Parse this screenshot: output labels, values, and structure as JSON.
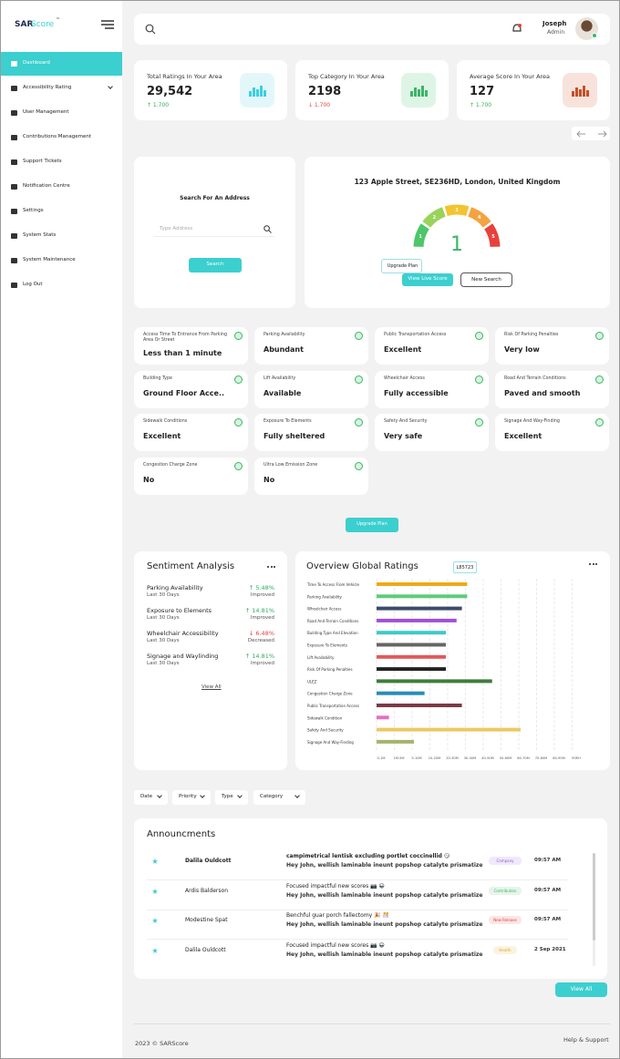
{
  "brand": {
    "prefix": "SAR",
    "suffix": "Score",
    "mark": "™"
  },
  "nav": [
    "Dashboard",
    "Accessibility Rating",
    "User Management",
    "Contributions Management",
    "Support Tickets",
    "Notification Centre",
    "Settings",
    "System Stats",
    "System Maintenance",
    "Log Out"
  ],
  "header": {
    "user_name": "Joseph",
    "user_role": "Admin"
  },
  "stats": [
    {
      "label": "Total Ratings In Your Area",
      "value": "29,542",
      "change": "↑ 1.700",
      "color": "#2fae5a",
      "icon_bg": "#e3f7fb",
      "icon_color": "#3ccfe0"
    },
    {
      "label": "Top Category In Your Area",
      "value": "2198",
      "change": "↓ 1.700",
      "color": "#e0443c",
      "icon_bg": "#def5e6",
      "icon_color": "#3bb567"
    },
    {
      "label": "Average Score In Your Area",
      "value": "127",
      "change": "↑ 1.700",
      "color": "#2fae5a",
      "icon_bg": "#f7e3dc",
      "icon_color": "#c4502a"
    }
  ],
  "search": {
    "title": "Search For An Address",
    "placeholder": "Type Address",
    "button": "Search"
  },
  "gauge": {
    "address": "123 Apple Street, SE236HD, London, United Kingdom",
    "segments": [
      "1",
      "2",
      "3",
      "4",
      "5"
    ],
    "segment_colors": [
      "#4cc76a",
      "#9ad35a",
      "#f4c430",
      "#f4a340",
      "#e8413c"
    ],
    "score": "1",
    "tooltip": "Upgrade Plan",
    "buttons": [
      "View Live Score",
      "New Search"
    ]
  },
  "features": [
    {
      "label": "Access Time To Entrance From Parking Area Or Street",
      "value": "Less than 1 minute"
    },
    {
      "label": "Parking Availability",
      "value": "Abundant"
    },
    {
      "label": "Public Transportation Access",
      "value": "Excellent"
    },
    {
      "label": "Risk Of Parking Penalties",
      "value": "Very low"
    },
    {
      "label": "Building Type",
      "value": "Ground Floor Acce.."
    },
    {
      "label": "Lift Availability",
      "value": "Available"
    },
    {
      "label": "Wheelchair Access",
      "value": "Fully accessible"
    },
    {
      "label": "Road And Terrain Conditions",
      "value": "Paved and smooth"
    },
    {
      "label": "Sidewalk Conditions",
      "value": "Excellent"
    },
    {
      "label": "Exposure To Elements",
      "value": "Fully sheltered"
    },
    {
      "label": "Safety And Security",
      "value": "Very safe"
    },
    {
      "label": "Signage And Way-Finding",
      "value": "Excellent"
    },
    {
      "label": "Congestion Charge Zone",
      "value": "No"
    },
    {
      "label": "Ultra Low Emission Zone",
      "value": "No"
    }
  ],
  "upgrade_button": "Upgrade Plan",
  "sentiment": {
    "title": "Sentiment Analysis",
    "items": [
      {
        "name": "Parking Availability",
        "period": "Last 30 Days",
        "change": "↑ 5.48%",
        "status": "Improved",
        "color": "#2fae5a"
      },
      {
        "name": "Exposure to Elements",
        "period": "Last 30 Days",
        "change": "↑ 14.81%",
        "status": "Improved",
        "color": "#2fae5a"
      },
      {
        "name": "Wheelchair Accessibility",
        "period": "Last 30 Days",
        "change": "↓ 6.48%",
        "status": "Decreased",
        "color": "#e0443c"
      },
      {
        "name": "Signage and Waylinding",
        "period": "Last 30 Days",
        "change": "↑ 14.81%",
        "status": "Improved",
        "color": "#2fae5a"
      }
    ],
    "link": "View All"
  },
  "chart_data": {
    "type": "bar",
    "orientation": "horizontal",
    "title": "Overview Global Ratings",
    "annotation": "L85723",
    "categories": [
      "Time To Access From Vehicle",
      "Parking Availability",
      "Wheelchair Access",
      "Road And Terrain Conditions",
      "Building Type And Elevation",
      "Exposure To Elements",
      "Lift Availability",
      "Risk Of Parking Penalties",
      "ULEZ",
      "Congestion Charge Zone",
      "Public Transportation Access",
      "Sidewalk Condition",
      "Safety And Security",
      "Signage And Way-Finding"
    ],
    "values": [
      5.1,
      5.1,
      4.8,
      4.5,
      3.9,
      3.9,
      3.9,
      3.9,
      6.5,
      2.7,
      4.8,
      0.7,
      8.1,
      2.1
    ],
    "colors": [
      "#f0a818",
      "#5ecb7a",
      "#3d4a6b",
      "#a24fd6",
      "#3ec9c9",
      "#666666",
      "#e05a5a",
      "#222222",
      "#3e7d3a",
      "#2a8bb8",
      "#7a3b46",
      "#e36fc4",
      "#ecc965",
      "#a3b56a"
    ],
    "xlim": [
      0,
      12
    ],
    "xticks": [
      {
        "value": 0,
        "label": "0-1M"
      },
      {
        "value": 1,
        "label": "1M-5M"
      },
      {
        "value": 2,
        "label": "5-10M"
      },
      {
        "value": 3,
        "label": "10-20M"
      },
      {
        "value": 4,
        "label": "20-30M"
      },
      {
        "value": 5,
        "label": "30-40M"
      },
      {
        "value": 6,
        "label": "40-50M"
      },
      {
        "value": 7,
        "label": "50-60M"
      },
      {
        "value": 8,
        "label": "60-70M"
      },
      {
        "value": 9,
        "label": "70-80M"
      },
      {
        "value": 10,
        "label": "80-90M"
      },
      {
        "value": 11,
        "label": "90M+"
      }
    ],
    "grid": true
  },
  "filters": [
    "Date",
    "Priority",
    "Type",
    "Category"
  ],
  "announcements": {
    "title": "Announcments",
    "rows": [
      {
        "name": "Dalila Ouldcott",
        "title": "campimetrical lentisk excluding portlet coccinellid 😏",
        "body": "Hey John, wellish laminable ineunt popshop catalyte prismatize",
        "tag": "Company",
        "tag_color": "#8a5cd6",
        "time": "09:57 AM"
      },
      {
        "name": "Ardis Balderson",
        "title": "Focused impactful new scores 📷 😀",
        "body": "Hey John, wellish laminable ineunt popshop catalyte prismatize",
        "tag": "Contribution",
        "tag_color": "#3bb567",
        "time": "09:57 AM"
      },
      {
        "name": "Modestine Spat",
        "title": "Benchful guar porch fallectomy 🎉 🎊",
        "body": "Hey John, wellish laminable ineunt popshop catalyte prismatize",
        "tag": "New Release",
        "tag_color": "#e0443c",
        "time": "09:57 AM"
      },
      {
        "name": "Dalila Ouldcott",
        "title": "Focused impactful new scores 📷 😀",
        "body": "Hey John, wellish laminable ineunt popshop catalyte prismatize",
        "tag": "Health",
        "tag_color": "#e0a820",
        "time": "2 Sep 2021"
      }
    ]
  },
  "view_all": "View All",
  "footer": {
    "copyright": "2023 © SARScore",
    "help": "Help & Support"
  }
}
